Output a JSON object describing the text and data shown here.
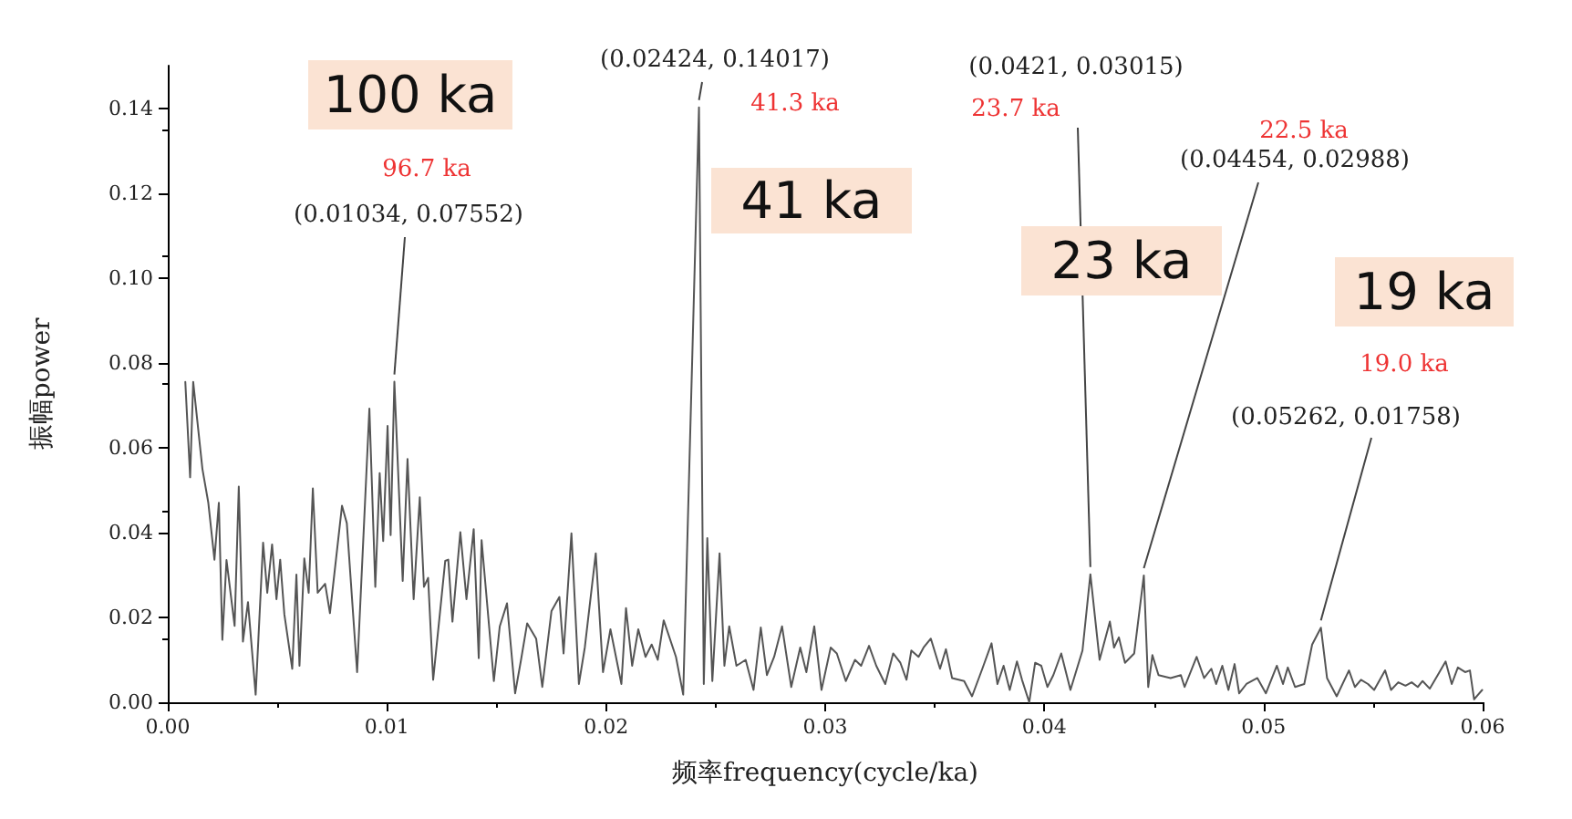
{
  "chart_data": {
    "type": "line",
    "xlabel": "频率frequency(cycle/ka)",
    "ylabel": "振幅power",
    "color": "#555555",
    "grid": false,
    "marker": "none",
    "line_style": "solid",
    "xlim": [
      0,
      0.06
    ],
    "xticks": [
      {
        "value": 0,
        "label": "0.00"
      },
      {
        "value": 0.01,
        "label": "0.01"
      },
      {
        "value": 0.02,
        "label": "0.02"
      },
      {
        "value": 0.03,
        "label": "0.03"
      },
      {
        "value": 0.04,
        "label": "0.04"
      },
      {
        "value": 0.05,
        "label": "0.05"
      },
      {
        "value": 0.06,
        "label": "0.06"
      }
    ],
    "ylim": [
      0,
      0.15
    ],
    "yticks": [
      {
        "value": 0,
        "label": "0.00"
      },
      {
        "value": 0.02,
        "label": "0.02"
      },
      {
        "value": 0.04,
        "label": "0.04"
      },
      {
        "value": 0.06,
        "label": "0.06"
      },
      {
        "value": 0.08,
        "label": "0.08"
      },
      {
        "value": 0.1,
        "label": "0.10"
      },
      {
        "value": 0.12,
        "label": "0.12"
      },
      {
        "value": 0.14,
        "label": "0.14"
      }
    ],
    "x": [
      0.0008,
      0.00102,
      0.00116,
      0.00158,
      0.00185,
      0.00213,
      0.00233,
      0.00249,
      0.00268,
      0.00305,
      0.00324,
      0.00343,
      0.00366,
      0.00401,
      0.00435,
      0.00454,
      0.00476,
      0.00496,
      0.00513,
      0.00532,
      0.00568,
      0.00587,
      0.00601,
      0.00623,
      0.00643,
      0.00662,
      0.00684,
      0.00718,
      0.0074,
      0.00795,
      0.00817,
      0.00864,
      0.0092,
      0.00947,
      0.00967,
      0.00983,
      0.01003,
      0.01017,
      0.01034,
      0.01072,
      0.01094,
      0.01122,
      0.0115,
      0.01169,
      0.01188,
      0.01211,
      0.01266,
      0.0128,
      0.01299,
      0.01335,
      0.01363,
      0.01396,
      0.01419,
      0.01432,
      0.01488,
      0.01515,
      0.01548,
      0.01585,
      0.01612,
      0.0164,
      0.01681,
      0.01709,
      0.01751,
      0.01787,
      0.01806,
      0.01842,
      0.01876,
      0.01903,
      0.01953,
      0.01986,
      0.0202,
      0.0207,
      0.02091,
      0.02119,
      0.02147,
      0.0218,
      0.02208,
      0.02236,
      0.02263,
      0.02319,
      0.02352,
      0.02424,
      0.02446,
      0.02462,
      0.02485,
      0.02518,
      0.0254,
      0.02562,
      0.02595,
      0.02637,
      0.02673,
      0.02706,
      0.02734,
      0.02767,
      0.02803,
      0.02845,
      0.02886,
      0.02914,
      0.0295,
      0.02983,
      0.03025,
      0.03053,
      0.03094,
      0.03136,
      0.03164,
      0.032,
      0.03233,
      0.03274,
      0.0331,
      0.03343,
      0.03371,
      0.03393,
      0.03426,
      0.03449,
      0.03482,
      0.03524,
      0.03551,
      0.03579,
      0.03634,
      0.0367,
      0.03717,
      0.03759,
      0.03786,
      0.03814,
      0.03842,
      0.03875,
      0.03898,
      0.03931,
      0.03958,
      0.03986,
      0.04014,
      0.04041,
      0.04077,
      0.04119,
      0.04174,
      0.0421,
      0.04252,
      0.04299,
      0.04318,
      0.0434,
      0.04368,
      0.0441,
      0.04454,
      0.04474,
      0.04493,
      0.04521,
      0.04576,
      0.04623,
      0.0464,
      0.04695,
      0.04729,
      0.04762,
      0.04784,
      0.04812,
      0.0484,
      0.04868,
      0.04889,
      0.04922,
      0.04972,
      0.05011,
      0.05061,
      0.05089,
      0.05111,
      0.05144,
      0.05186,
      0.05222,
      0.05262,
      0.0529,
      0.05334,
      0.0539,
      0.05417,
      0.05445,
      0.05477,
      0.05505,
      0.05555,
      0.05582,
      0.05615,
      0.05648,
      0.05676,
      0.05704,
      0.05726,
      0.05759,
      0.05795,
      0.05831,
      0.05859,
      0.05887,
      0.0592,
      0.05942,
      0.05961,
      0.05998
    ],
    "values": [
      0.0755,
      0.053,
      0.0755,
      0.055,
      0.047,
      0.0336,
      0.047,
      0.0147,
      0.0335,
      0.018,
      0.0508,
      0.0143,
      0.0236,
      0.0018,
      0.0376,
      0.0258,
      0.0372,
      0.0243,
      0.0336,
      0.0207,
      0.0079,
      0.0301,
      0.0086,
      0.0339,
      0.0258,
      0.0504,
      0.0258,
      0.0279,
      0.021,
      0.0463,
      0.0422,
      0.0071,
      0.0692,
      0.0272,
      0.054,
      0.038,
      0.0651,
      0.0394,
      0.07552,
      0.0286,
      0.0573,
      0.0243,
      0.0483,
      0.0272,
      0.0293,
      0.0053,
      0.0333,
      0.0336,
      0.019,
      0.0401,
      0.0243,
      0.0408,
      0.0104,
      0.0382,
      0.005,
      0.0179,
      0.0233,
      0.0021,
      0.01,
      0.0186,
      0.015,
      0.0036,
      0.0215,
      0.0248,
      0.0115,
      0.0398,
      0.0043,
      0.0129,
      0.0351,
      0.0071,
      0.0172,
      0.0043,
      0.0222,
      0.0086,
      0.0172,
      0.0107,
      0.0136,
      0.01,
      0.0193,
      0.0107,
      0.0018,
      0.14017,
      0.0043,
      0.0387,
      0.005,
      0.0351,
      0.0086,
      0.0179,
      0.0086,
      0.01,
      0.0029,
      0.0176,
      0.0064,
      0.0107,
      0.0179,
      0.0036,
      0.0129,
      0.0071,
      0.0179,
      0.0029,
      0.0129,
      0.0115,
      0.005,
      0.01,
      0.0086,
      0.0133,
      0.0086,
      0.0043,
      0.0115,
      0.0093,
      0.0053,
      0.0122,
      0.0107,
      0.0129,
      0.015,
      0.0079,
      0.0125,
      0.0057,
      0.005,
      0.0014,
      0.0079,
      0.0139,
      0.0043,
      0.0086,
      0.0029,
      0.0096,
      0.0053,
      0.0,
      0.0093,
      0.0086,
      0.0036,
      0.0064,
      0.0115,
      0.0029,
      0.0122,
      0.03015,
      0.01,
      0.019,
      0.0129,
      0.0153,
      0.0093,
      0.0115,
      0.02988,
      0.0036,
      0.0111,
      0.0064,
      0.0057,
      0.0064,
      0.0036,
      0.0107,
      0.0057,
      0.0079,
      0.0043,
      0.0086,
      0.0029,
      0.009,
      0.0021,
      0.0043,
      0.0057,
      0.0021,
      0.0086,
      0.0043,
      0.0082,
      0.0036,
      0.0043,
      0.0136,
      0.01758,
      0.0057,
      0.0014,
      0.0075,
      0.0036,
      0.0053,
      0.0043,
      0.0029,
      0.0075,
      0.0029,
      0.0047,
      0.0039,
      0.0047,
      0.0036,
      0.005,
      0.0032,
      0.0064,
      0.0096,
      0.0043,
      0.0082,
      0.0071,
      0.0075,
      0.0007,
      0.0029
    ],
    "annotations": [
      "100 ka",
      "96.7 ka",
      {
        "text": "(0.01034, 0.07552)",
        "x": 0.01034,
        "y": 0.07552
      },
      "41 ka",
      {
        "text": "(0.02424, 0.14017)",
        "x": 0.02424,
        "y": 0.14017
      },
      "41.3 ka",
      "(0.0421, 0.03015)",
      {
        "text": "23.7 ka",
        "x": 0.0421,
        "y": 0.03015
      },
      "23 ka",
      "22.5 ka",
      {
        "text": "(0.04454, 0.02988)",
        "x": 0.04454,
        "y": 0.02988
      },
      "19 ka",
      "19.0 ka",
      {
        "text": "(0.05262, 0.01758)",
        "x": 0.05262,
        "y": 0.01758
      }
    ]
  }
}
